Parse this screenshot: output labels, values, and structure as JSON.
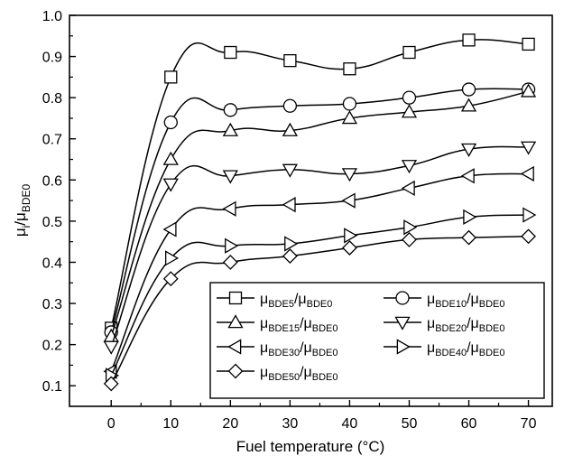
{
  "chart_data": {
    "type": "line",
    "title": "",
    "xlabel": "Fuel temperature (°C)",
    "ylabel": {
      "main": "μ",
      "sub": "i",
      "divider": "/μ",
      "sub2": "BDE0"
    },
    "xlim": [
      -7,
      74
    ],
    "ylim": [
      0.05,
      1.0
    ],
    "x_ticks": [
      "0",
      "10",
      "20",
      "30",
      "40",
      "50",
      "60",
      "70"
    ],
    "y_ticks": [
      "0.1",
      "0.2",
      "0.3",
      "0.4",
      "0.5",
      "0.6",
      "0.7",
      "0.8",
      "0.9",
      "1.0"
    ],
    "x": [
      0,
      10,
      20,
      30,
      40,
      50,
      60,
      70
    ],
    "grid": false,
    "legend_position": "bottom-right",
    "series": [
      {
        "name": "μBDE5/μBDE0",
        "label_main": "μ",
        "label_sub": "BDE5",
        "label_mid": "/μ",
        "label_sub2": "BDE0",
        "marker": "square",
        "values": [
          0.24,
          0.85,
          0.91,
          0.89,
          0.87,
          0.91,
          0.94,
          0.93
        ]
      },
      {
        "name": "μBDE10/μBDE0",
        "label_main": "μ",
        "label_sub": "BDE10",
        "label_mid": "/μ",
        "label_sub2": "BDE0",
        "marker": "circle",
        "values": [
          0.23,
          0.74,
          0.77,
          0.78,
          0.785,
          0.8,
          0.82,
          0.82
        ]
      },
      {
        "name": "μBDE15/μBDE0",
        "label_main": "μ",
        "label_sub": "BDE15",
        "label_mid": "/μ",
        "label_sub2": "BDE0",
        "marker": "triangle-up",
        "values": [
          0.22,
          0.65,
          0.72,
          0.72,
          0.75,
          0.765,
          0.78,
          0.815
        ]
      },
      {
        "name": "μBDE20/μBDE0",
        "label_main": "μ",
        "label_sub": "BDE20",
        "label_mid": "/μ",
        "label_sub2": "BDE0",
        "marker": "triangle-down",
        "values": [
          0.195,
          0.59,
          0.61,
          0.625,
          0.615,
          0.635,
          0.675,
          0.68
        ]
      },
      {
        "name": "μBDE30/μBDE0",
        "label_main": "μ",
        "label_sub": "BDE30",
        "label_mid": "/μ",
        "label_sub2": "BDE0",
        "marker": "triangle-left",
        "values": [
          0.135,
          0.48,
          0.53,
          0.54,
          0.55,
          0.58,
          0.61,
          0.615
        ]
      },
      {
        "name": "μBDE40/μBDE0",
        "label_main": "μ",
        "label_sub": "BDE40",
        "label_mid": "/μ",
        "label_sub2": "BDE0",
        "marker": "triangle-right",
        "values": [
          0.125,
          0.41,
          0.44,
          0.445,
          0.465,
          0.485,
          0.51,
          0.515
        ]
      },
      {
        "name": "μBDE50/μBDE0",
        "label_main": "μ",
        "label_sub": "BDE50",
        "label_mid": "/μ",
        "label_sub2": "BDE0",
        "marker": "diamond",
        "values": [
          0.105,
          0.36,
          0.4,
          0.415,
          0.435,
          0.455,
          0.46,
          0.463
        ]
      }
    ]
  }
}
